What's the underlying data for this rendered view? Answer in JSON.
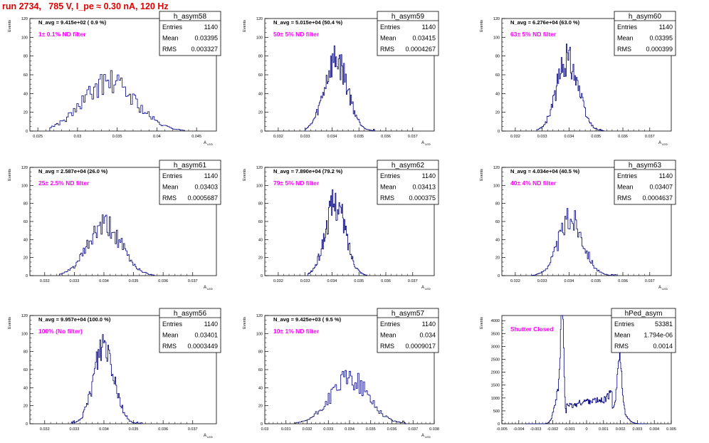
{
  "page": {
    "title": "run 2734,   785 V, I_pe ≈ 0.30 nA, 120 Hz",
    "colors": {
      "title": "#e00000",
      "hist_line": "#00007f",
      "annotation": "#ff00ff",
      "axis": "#000000"
    }
  },
  "chart_data": [
    {
      "type": "histogram",
      "name": "h_asym58",
      "stats": {
        "entries": "1140",
        "mean": "0.03395",
        "rms": "0.003327"
      },
      "navg": "N_avg = 9.415e+02 ( 0.9 %)",
      "note": "1± 0.1% ND filter",
      "xlim": [
        0.024,
        0.0475
      ],
      "ylim": [
        0,
        120
      ],
      "xticks": [
        "0.025",
        "0.03",
        "0.035",
        "0.04",
        "0.045"
      ],
      "xtick_values": [
        0.025,
        0.03,
        0.035,
        0.04,
        0.045
      ],
      "yticks": [
        "0",
        "20",
        "40",
        "60",
        "80",
        "100",
        "120"
      ],
      "ytick_values": [
        0,
        20,
        40,
        60,
        80,
        100,
        120
      ],
      "ylabel": "Events",
      "xlabel": "A_LED",
      "bins": {
        "lo": 0.0265,
        "hi": 0.0435,
        "peak": 52,
        "center": 0.034,
        "sigma": 0.0033,
        "seed": 58
      }
    },
    {
      "type": "histogram",
      "name": "h_asym59",
      "stats": {
        "entries": "1140",
        "mean": "0.03415",
        "rms": "0.0004267"
      },
      "navg": "N_avg = 5.015e+04 (50.4 %)",
      "note": "50± 5% ND filter",
      "xlim": [
        0.0315,
        0.0378
      ],
      "ylim": [
        0,
        120
      ],
      "xticks": [
        "0.032",
        "0.033",
        "0.034",
        "0.035",
        "0.036",
        "0.037"
      ],
      "xtick_values": [
        0.032,
        0.033,
        0.034,
        0.035,
        0.036,
        0.037
      ],
      "yticks": [
        "0",
        "20",
        "40",
        "60",
        "80",
        "100",
        "120"
      ],
      "ytick_values": [
        0,
        20,
        40,
        60,
        80,
        100,
        120
      ],
      "ylabel": "Events",
      "xlabel": "A_LED",
      "bins": {
        "lo": 0.033,
        "hi": 0.0356,
        "peak": 76,
        "center": 0.03415,
        "sigma": 0.00043,
        "seed": 59
      }
    },
    {
      "type": "histogram",
      "name": "h_asym60",
      "stats": {
        "entries": "1140",
        "mean": "0.03395",
        "rms": "0.000399"
      },
      "navg": "N_avg = 6.276e+04 (63.0 %)",
      "note": "63± 5% ND filter",
      "xlim": [
        0.0315,
        0.0378
      ],
      "ylim": [
        0,
        120
      ],
      "xticks": [
        "0.032",
        "0.033",
        "0.034",
        "0.035",
        "0.036",
        "0.037"
      ],
      "xtick_values": [
        0.032,
        0.033,
        0.034,
        0.035,
        0.036,
        0.037
      ],
      "yticks": [
        "0",
        "20",
        "40",
        "60",
        "80",
        "100",
        "120"
      ],
      "ytick_values": [
        0,
        20,
        40,
        60,
        80,
        100,
        120
      ],
      "ylabel": "Events",
      "xlabel": "A_LED",
      "bins": {
        "lo": 0.0328,
        "hi": 0.0353,
        "peak": 78,
        "center": 0.03395,
        "sigma": 0.0004,
        "seed": 60
      }
    },
    {
      "type": "histogram",
      "name": "h_asym61",
      "stats": {
        "entries": "1140",
        "mean": "0.03403",
        "rms": "0.0005687"
      },
      "navg": "N_avg = 2.587e+04 (26.0 %)",
      "note": "25± 2.5% ND filter",
      "xlim": [
        0.0315,
        0.0378
      ],
      "ylim": [
        0,
        120
      ],
      "xticks": [
        "0.032",
        "0.033",
        "0.034",
        "0.035",
        "0.036",
        "0.037"
      ],
      "xtick_values": [
        0.032,
        0.033,
        0.034,
        0.035,
        0.036,
        0.037
      ],
      "yticks": [
        "0",
        "20",
        "40",
        "60",
        "80",
        "100",
        "120"
      ],
      "ytick_values": [
        0,
        20,
        40,
        60,
        80,
        100,
        120
      ],
      "ylabel": "Events",
      "xlabel": "A_LED",
      "bins": {
        "lo": 0.0325,
        "hi": 0.0357,
        "peak": 55,
        "center": 0.03403,
        "sigma": 0.00057,
        "seed": 61
      }
    },
    {
      "type": "histogram",
      "name": "h_asym62",
      "stats": {
        "entries": "1140",
        "mean": "0.03413",
        "rms": "0.000375"
      },
      "navg": "N_avg = 7.890e+04 (79.2 %)",
      "note": "79± 5% ND filter",
      "xlim": [
        0.0315,
        0.0378
      ],
      "ylim": [
        0,
        120
      ],
      "xticks": [
        "0.032",
        "0.033",
        "0.034",
        "0.035",
        "0.036",
        "0.037"
      ],
      "xtick_values": [
        0.032,
        0.033,
        0.034,
        0.035,
        0.036,
        0.037
      ],
      "yticks": [
        "0",
        "20",
        "40",
        "60",
        "80",
        "100",
        "120"
      ],
      "ytick_values": [
        0,
        20,
        40,
        60,
        80,
        100,
        120
      ],
      "ylabel": "Events",
      "xlabel": "A_LED",
      "bins": {
        "lo": 0.0331,
        "hi": 0.0353,
        "peak": 80,
        "center": 0.03413,
        "sigma": 0.000375,
        "seed": 62
      }
    },
    {
      "type": "histogram",
      "name": "h_asym63",
      "stats": {
        "entries": "1140",
        "mean": "0.03407",
        "rms": "0.0004637"
      },
      "navg": "N_avg = 4.034e+04 (40.5 %)",
      "note": "40± 4% ND filter",
      "xlim": [
        0.0315,
        0.0378
      ],
      "ylim": [
        0,
        120
      ],
      "xticks": [
        "0.032",
        "0.033",
        "0.034",
        "0.035",
        "0.036",
        "0.037"
      ],
      "xtick_values": [
        0.032,
        0.033,
        0.034,
        0.035,
        0.036,
        0.037
      ],
      "yticks": [
        "0",
        "20",
        "40",
        "60",
        "80",
        "100",
        "120"
      ],
      "ytick_values": [
        0,
        20,
        40,
        60,
        80,
        100,
        120
      ],
      "ylabel": "Events",
      "xlabel": "A_LED",
      "bins": {
        "lo": 0.0326,
        "hi": 0.0358,
        "peak": 63,
        "center": 0.03407,
        "sigma": 0.00046,
        "seed": 63
      }
    },
    {
      "type": "histogram",
      "name": "h_asym56",
      "stats": {
        "entries": "1140",
        "mean": "0.03401",
        "rms": "0.0003449"
      },
      "navg": "N_avg = 9.957e+04 (100.0 %)",
      "note": "100% (No filter)",
      "xlim": [
        0.0315,
        0.0378
      ],
      "ylim": [
        0,
        120
      ],
      "xticks": [
        "0.032",
        "0.033",
        "0.034",
        "0.035",
        "0.036",
        "0.037"
      ],
      "xtick_values": [
        0.032,
        0.033,
        0.034,
        0.035,
        0.036,
        0.037
      ],
      "yticks": [
        "0",
        "20",
        "40",
        "60",
        "80",
        "100",
        "120"
      ],
      "ytick_values": [
        0,
        20,
        40,
        60,
        80,
        100,
        120
      ],
      "ylabel": "Events",
      "xlabel": "A_LED",
      "bins": {
        "lo": 0.0329,
        "hi": 0.0353,
        "peak": 90,
        "center": 0.03401,
        "sigma": 0.00034,
        "seed": 56
      }
    },
    {
      "type": "histogram",
      "name": "h_asym57",
      "stats": {
        "entries": "1140",
        "mean": "0.034",
        "rms": "0.0009017"
      },
      "navg": "N_avg = 9.425e+03 ( 9.5 %)",
      "note": "10± 1% ND filter",
      "xlim": [
        0.03,
        0.038
      ],
      "ylim": [
        0,
        120
      ],
      "xticks": [
        "0.03",
        "0.031",
        "0.032",
        "0.033",
        "0.034",
        "0.035",
        "0.036",
        "0.037",
        "0.038"
      ],
      "xtick_values": [
        0.03,
        0.031,
        0.032,
        0.033,
        0.034,
        0.035,
        0.036,
        0.037,
        0.038
      ],
      "yticks": [
        "0",
        "20",
        "40",
        "60",
        "80",
        "100",
        "120"
      ],
      "ytick_values": [
        0,
        20,
        40,
        60,
        80,
        100,
        120
      ],
      "ylabel": "Events",
      "xlabel": "A_LED",
      "bins": {
        "lo": 0.0314,
        "hi": 0.0367,
        "peak": 50,
        "center": 0.034,
        "sigma": 0.0009,
        "seed": 57
      }
    },
    {
      "type": "histogram",
      "name": "hPed_asym",
      "stats": {
        "entries": "53381",
        "mean": "1.794e-06",
        "rms": "0.0014"
      },
      "navg": "",
      "note": "Shutter Closed",
      "xlim": [
        -0.005,
        0.005
      ],
      "ylim": [
        0,
        4200
      ],
      "xticks": [
        "-0.005",
        "-0.004",
        "-0.003",
        "-0.002",
        "-0.001",
        "0",
        "0.001",
        "0.002",
        "0.003",
        "0.004",
        "0.005"
      ],
      "xtick_values": [
        -0.005,
        -0.004,
        -0.003,
        -0.002,
        -0.001,
        0,
        0.001,
        0.002,
        0.003,
        0.004,
        0.005
      ],
      "yticks": [
        "0",
        "500",
        "1000",
        "1500",
        "2000",
        "2500",
        "3000",
        "3500",
        "4000"
      ],
      "ytick_values": [
        0,
        500,
        1000,
        1500,
        2000,
        2500,
        3000,
        3500,
        4000
      ],
      "ylabel": "Events",
      "xlabel": "",
      "bimodal": true
    }
  ]
}
